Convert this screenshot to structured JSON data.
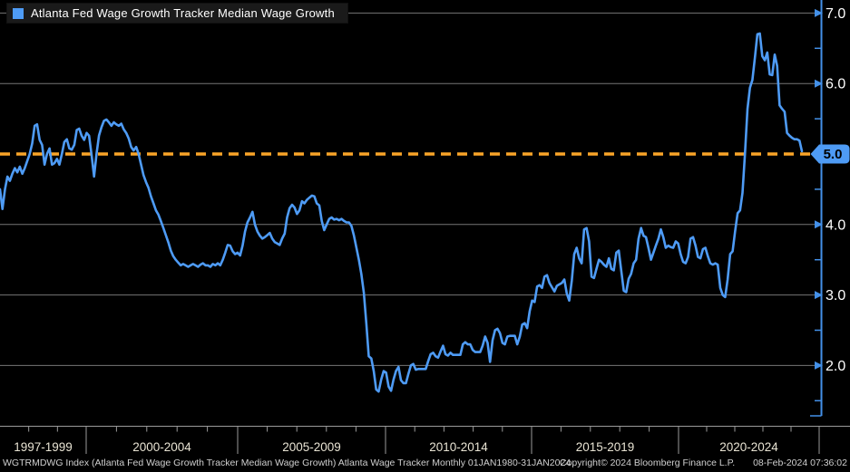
{
  "colors": {
    "background": "#000000",
    "line": "#4E9BF5",
    "threshold": "#F9A428",
    "grid": "#757575",
    "axis_blue": "#4390E8",
    "axis_gray": "#9A9A9A",
    "x_label": "#E8E3D3",
    "y_label": "#FFFFFF",
    "badge_text": "#000000",
    "footer_text": "#CFCFCF",
    "legend_bg": "#1A1A1A"
  },
  "legend": {
    "label": "Atlanta Fed Wage Growth Tracker Median Wage Growth"
  },
  "footer": {
    "left": "WGTRMDWG Index (Atlanta Fed Wage Growth Tracker Median Wage Growth) Atlanta Wage Tracker  Monthly 01JAN1980-31JAN2024",
    "center": "Copyright© 2024 Bloomberg Finance L.P.",
    "right": "08-Feb-2024 07:36:02"
  },
  "chart_data": {
    "type": "line",
    "title": "Atlanta Fed Wage Growth Tracker Median Wage Growth",
    "xlabel": "",
    "ylabel": "",
    "grid": true,
    "legend_position": "top-left",
    "x_axis": {
      "period_labels": [
        "1997-1999",
        "2000-2004",
        "2005-2009",
        "2010-2014",
        "2015-2019",
        "2020-2024"
      ],
      "start": "1997-01",
      "end": "2024-01",
      "frequency": "monthly"
    },
    "y_axis": {
      "side": "right",
      "range": [
        1.1,
        7.2
      ],
      "major_ticks": [
        7,
        6,
        5,
        4,
        3,
        2
      ],
      "minor_ticks": [
        6.5,
        5.5,
        4.5,
        3.5,
        2.5,
        1.5
      ],
      "gridline_values": [
        7,
        6,
        4,
        3,
        2
      ]
    },
    "threshold_line": {
      "value": 5,
      "style": "dashed",
      "color": "#F9A428"
    },
    "last_value_badge": {
      "value": 5,
      "label": "5.0"
    },
    "series": [
      {
        "name": "Atlanta Fed Wage Growth Tracker Median Wage Growth",
        "color": "#4E9BF5",
        "start": "1997-01",
        "end": "2024-01",
        "values": [
          4.5,
          4.22,
          4.5,
          4.68,
          4.62,
          4.72,
          4.8,
          4.74,
          4.82,
          4.72,
          4.8,
          4.9,
          5.0,
          5.15,
          5.4,
          5.42,
          5.2,
          5.13,
          4.85,
          5.0,
          5.08,
          4.85,
          4.87,
          4.93,
          4.85,
          5.0,
          5.17,
          5.21,
          5.08,
          5.06,
          5.13,
          5.34,
          5.36,
          5.26,
          5.2,
          5.3,
          5.26,
          4.98,
          4.68,
          5.0,
          5.26,
          5.38,
          5.47,
          5.49,
          5.45,
          5.4,
          5.45,
          5.42,
          5.4,
          5.43,
          5.35,
          5.3,
          5.22,
          5.1,
          5.05,
          5.1,
          5.0,
          4.85,
          4.7,
          4.6,
          4.52,
          4.4,
          4.3,
          4.2,
          4.14,
          4.05,
          3.95,
          3.85,
          3.75,
          3.63,
          3.55,
          3.5,
          3.46,
          3.42,
          3.44,
          3.42,
          3.4,
          3.42,
          3.44,
          3.42,
          3.4,
          3.43,
          3.45,
          3.42,
          3.42,
          3.4,
          3.44,
          3.42,
          3.45,
          3.42,
          3.5,
          3.6,
          3.71,
          3.7,
          3.62,
          3.58,
          3.6,
          3.56,
          3.7,
          3.9,
          4.03,
          4.1,
          4.18,
          4.0,
          3.9,
          3.84,
          3.8,
          3.82,
          3.85,
          3.88,
          3.8,
          3.75,
          3.73,
          3.71,
          3.8,
          3.87,
          4.1,
          4.23,
          4.28,
          4.24,
          4.15,
          4.2,
          4.33,
          4.3,
          4.35,
          4.38,
          4.41,
          4.4,
          4.3,
          4.27,
          4.05,
          3.92,
          4.0,
          4.08,
          4.1,
          4.07,
          4.08,
          4.06,
          4.08,
          4.05,
          4.03,
          4.03,
          3.98,
          3.84,
          3.67,
          3.5,
          3.3,
          3.03,
          2.6,
          2.13,
          2.1,
          1.92,
          1.66,
          1.63,
          1.8,
          1.92,
          1.9,
          1.7,
          1.64,
          1.8,
          1.92,
          1.98,
          1.79,
          1.75,
          1.75,
          1.88,
          2.0,
          2.02,
          1.94,
          1.95,
          1.95,
          1.95,
          1.95,
          2.06,
          2.16,
          2.18,
          2.13,
          2.11,
          2.2,
          2.28,
          2.16,
          2.14,
          2.18,
          2.15,
          2.15,
          2.15,
          2.15,
          2.3,
          2.33,
          2.3,
          2.3,
          2.22,
          2.19,
          2.19,
          2.19,
          2.28,
          2.41,
          2.32,
          2.05,
          2.36,
          2.5,
          2.52,
          2.46,
          2.32,
          2.3,
          2.41,
          2.42,
          2.42,
          2.42,
          2.3,
          2.41,
          2.58,
          2.6,
          2.53,
          2.77,
          2.92,
          2.9,
          3.12,
          3.14,
          3.1,
          3.26,
          3.28,
          3.17,
          3.11,
          3.05,
          3.13,
          3.15,
          3.17,
          3.22,
          3.02,
          2.92,
          3.2,
          3.58,
          3.67,
          3.52,
          3.45,
          3.93,
          3.95,
          3.76,
          3.26,
          3.24,
          3.37,
          3.5,
          3.47,
          3.43,
          3.4,
          3.52,
          3.37,
          3.35,
          3.6,
          3.63,
          3.35,
          3.06,
          3.04,
          3.23,
          3.3,
          3.45,
          3.5,
          3.8,
          3.95,
          3.84,
          3.82,
          3.67,
          3.5,
          3.6,
          3.7,
          3.8,
          3.93,
          3.82,
          3.67,
          3.7,
          3.68,
          3.67,
          3.76,
          3.73,
          3.58,
          3.47,
          3.45,
          3.54,
          3.8,
          3.82,
          3.7,
          3.54,
          3.52,
          3.65,
          3.67,
          3.55,
          3.45,
          3.43,
          3.45,
          3.43,
          3.1,
          3.0,
          2.97,
          3.22,
          3.58,
          3.62,
          3.9,
          4.16,
          4.2,
          4.45,
          5.0,
          5.64,
          5.94,
          6.05,
          6.37,
          6.7,
          6.71,
          6.39,
          6.33,
          6.44,
          6.13,
          6.12,
          6.41,
          6.25,
          5.69,
          5.64,
          5.6,
          5.3,
          5.26,
          5.23,
          5.21,
          5.21,
          5.19,
          5.04
        ]
      }
    ]
  }
}
